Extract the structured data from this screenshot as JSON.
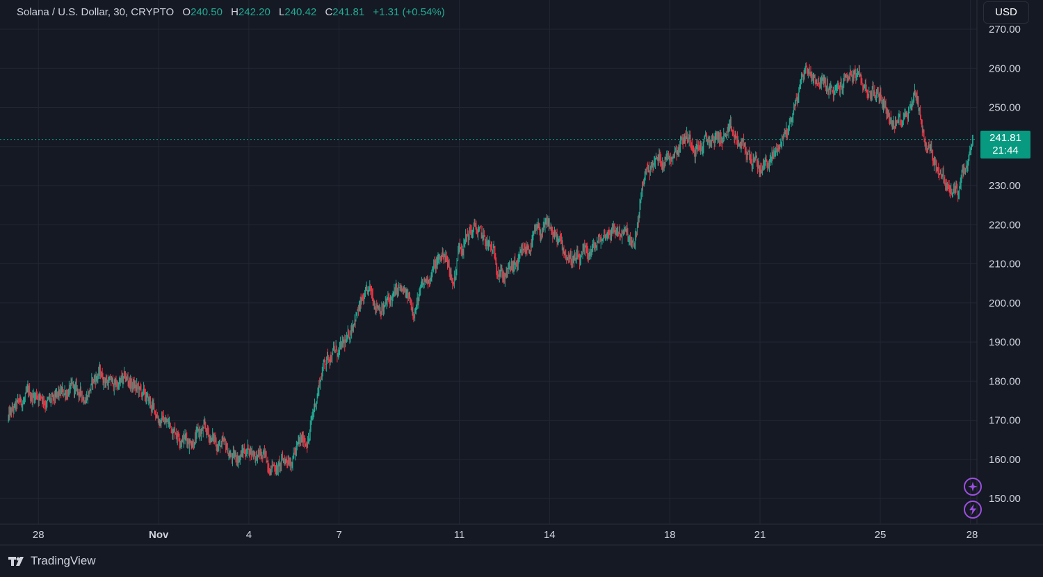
{
  "legend": {
    "symbol": "Solana / U.S. Dollar, 30, CRYPTO",
    "o_label": "O",
    "o": "240.50",
    "h_label": "H",
    "h": "242.20",
    "l_label": "L",
    "l": "240.42",
    "c_label": "C",
    "c": "241.81",
    "change": "+1.31 (+0.54%)"
  },
  "currency_button": "USD",
  "last_price": {
    "price": "241.81",
    "countdown": "21:44"
  },
  "brand": "TradingView",
  "colors": {
    "background": "#151924",
    "grid": "#232733",
    "up": "#22ab94",
    "down": "#f23645",
    "tag": "#089981",
    "accent": "#9c4fe0"
  },
  "icons": [
    "sparkle-icon",
    "lightning-icon"
  ],
  "chart_data": {
    "type": "candlestick",
    "interval": "30",
    "y_ticks": [
      "270.00",
      "260.00",
      "250.00",
      "240.00",
      "230.00",
      "220.00",
      "210.00",
      "200.00",
      "190.00",
      "180.00",
      "170.00",
      "160.00",
      "150.00"
    ],
    "ylim": [
      145,
      270
    ],
    "x_ticks": [
      "28",
      "Nov",
      "4",
      "7",
      "11",
      "14",
      "18",
      "21",
      "25",
      "28"
    ],
    "x_tick_days": [
      0,
      4,
      7,
      10,
      14,
      17,
      21,
      24,
      28,
      31
    ],
    "xlim_days": [
      -1,
      31.1
    ],
    "last_close": 241.81,
    "price_path": [
      [
        -1.0,
        170.5
      ],
      [
        -0.5,
        175
      ],
      [
        0,
        177
      ],
      [
        0.5,
        174
      ],
      [
        1,
        178
      ],
      [
        1.5,
        176
      ],
      [
        2,
        182
      ],
      [
        2.5,
        179
      ],
      [
        3,
        180
      ],
      [
        3.5,
        176
      ],
      [
        4,
        171
      ],
      [
        4.5,
        168
      ],
      [
        5,
        165
      ],
      [
        5.5,
        167
      ],
      [
        6,
        164
      ],
      [
        6.5,
        160
      ],
      [
        7,
        163
      ],
      [
        7.5,
        160
      ],
      [
        8,
        158
      ],
      [
        8.5,
        162
      ],
      [
        9,
        166
      ],
      [
        9.3,
        178
      ],
      [
        9.5,
        185
      ],
      [
        9.8,
        188
      ],
      [
        10,
        187
      ],
      [
        10.3,
        190
      ],
      [
        10.5,
        197
      ],
      [
        11,
        202
      ],
      [
        11.5,
        199
      ],
      [
        12,
        203
      ],
      [
        12.5,
        199
      ],
      [
        13,
        207
      ],
      [
        13.5,
        213
      ],
      [
        13.8,
        205
      ],
      [
        14,
        215
      ],
      [
        14.5,
        219
      ],
      [
        15,
        214
      ],
      [
        15.5,
        207
      ],
      [
        16,
        210
      ],
      [
        16.5,
        217
      ],
      [
        17,
        219
      ],
      [
        17.5,
        213
      ],
      [
        18,
        210
      ],
      [
        18.5,
        214
      ],
      [
        19,
        219
      ],
      [
        19.5,
        218
      ],
      [
        19.8,
        213
      ],
      [
        20,
        224
      ],
      [
        20.2,
        234
      ],
      [
        20.5,
        236
      ],
      [
        21,
        238
      ],
      [
        21.5,
        243
      ],
      [
        22,
        240
      ],
      [
        22.5,
        242
      ],
      [
        23,
        243
      ],
      [
        23.5,
        239
      ],
      [
        24,
        234
      ],
      [
        24.5,
        238
      ],
      [
        25,
        246
      ],
      [
        25.5,
        260
      ],
      [
        26,
        257
      ],
      [
        26.5,
        253
      ],
      [
        27,
        259
      ],
      [
        27.5,
        255
      ],
      [
        28,
        253
      ],
      [
        28.5,
        245
      ],
      [
        29,
        251
      ],
      [
        29.2,
        254
      ],
      [
        29.5,
        241
      ],
      [
        30,
        234
      ],
      [
        30.3,
        228
      ],
      [
        30.6,
        229
      ],
      [
        31,
        237
      ],
      [
        31.1,
        241.8
      ]
    ]
  }
}
